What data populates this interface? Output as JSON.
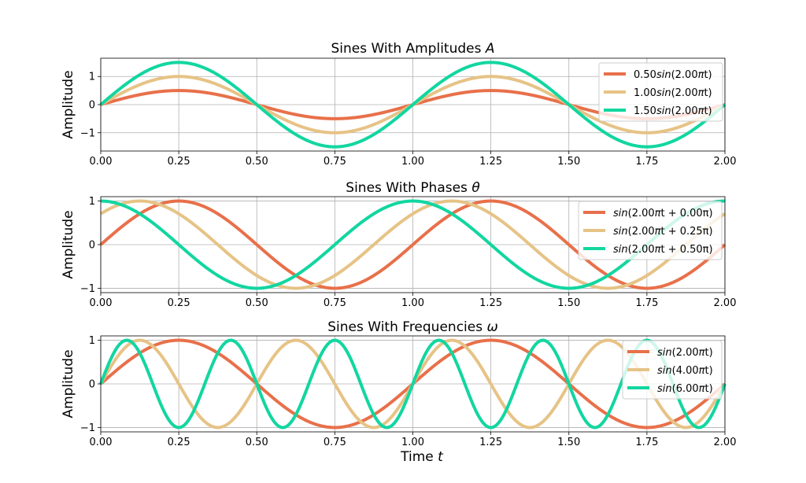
{
  "figure": {
    "xlabel_main": "Time",
    "xlabel_var": "t"
  },
  "colors": {
    "series1": "#e8704a",
    "series2": "#e6c386",
    "series3": "#12d6a0"
  },
  "chart_data": [
    {
      "type": "line",
      "title": "Sines With Amplitudes",
      "title_var": "A",
      "ylabel": "Amplitude",
      "xlim": [
        0,
        2
      ],
      "ylim": [
        -1.65,
        1.65
      ],
      "xticks": [
        "0.00",
        "0.25",
        "0.50",
        "0.75",
        "1.00",
        "1.25",
        "1.50",
        "1.75",
        "2.00"
      ],
      "yticks": [
        {
          "value": 1,
          "label": "1"
        },
        {
          "value": 0,
          "label": "0"
        },
        {
          "value": -1,
          "label": "−1"
        }
      ],
      "legend_position": "top-right",
      "series": [
        {
          "name": "0.50sin(2.00πt)",
          "legend_prefix": "0.50",
          "legend_func": "sin",
          "legend_args": "(2.00",
          "legend_mid": "π",
          "legend_tail": "t)",
          "amplitude": 0.5,
          "frequency": 2.0,
          "phase": 0.0,
          "color": "#e8704a"
        },
        {
          "name": "1.00sin(2.00πt)",
          "legend_prefix": "1.00",
          "legend_func": "sin",
          "legend_args": "(2.00",
          "legend_mid": "π",
          "legend_tail": "t)",
          "amplitude": 1.0,
          "frequency": 2.0,
          "phase": 0.0,
          "color": "#e6c386"
        },
        {
          "name": "1.50sin(2.00πt)",
          "legend_prefix": "1.50",
          "legend_func": "sin",
          "legend_args": "(2.00",
          "legend_mid": "π",
          "legend_tail": "t)",
          "amplitude": 1.5,
          "frequency": 2.0,
          "phase": 0.0,
          "color": "#12d6a0"
        }
      ]
    },
    {
      "type": "line",
      "title": "Sines With Phases",
      "title_var": "θ",
      "ylabel": "Amplitude",
      "xlim": [
        0,
        2
      ],
      "ylim": [
        -1.1,
        1.1
      ],
      "xticks": [
        "0.00",
        "0.25",
        "0.50",
        "0.75",
        "1.00",
        "1.25",
        "1.50",
        "1.75",
        "2.00"
      ],
      "yticks": [
        {
          "value": 1,
          "label": "1"
        },
        {
          "value": 0,
          "label": "0"
        },
        {
          "value": -1,
          "label": "−1"
        }
      ],
      "legend_position": "right",
      "series": [
        {
          "name": "sin(2.00πt + 0.00π)",
          "legend_prefix": "",
          "legend_func": "sin",
          "legend_args": "(2.00",
          "legend_mid": "π",
          "legend_tail": "t + 0.00π)",
          "amplitude": 1.0,
          "frequency": 2.0,
          "phase": 0.0,
          "color": "#e8704a"
        },
        {
          "name": "sin(2.00πt + 0.25π)",
          "legend_prefix": "",
          "legend_func": "sin",
          "legend_args": "(2.00",
          "legend_mid": "π",
          "legend_tail": "t + 0.25π)",
          "amplitude": 1.0,
          "frequency": 2.0,
          "phase": 0.25,
          "color": "#e6c386"
        },
        {
          "name": "sin(2.00πt + 0.50π)",
          "legend_prefix": "",
          "legend_func": "sin",
          "legend_args": "(2.00",
          "legend_mid": "π",
          "legend_tail": "t + 0.50π)",
          "amplitude": 1.0,
          "frequency": 2.0,
          "phase": 0.5,
          "color": "#12d6a0"
        }
      ]
    },
    {
      "type": "line",
      "title": "Sines With Frequencies",
      "title_var": "ω",
      "ylabel": "Amplitude",
      "xlim": [
        0,
        2
      ],
      "ylim": [
        -1.1,
        1.1
      ],
      "xticks": [
        "0.00",
        "0.25",
        "0.50",
        "0.75",
        "1.00",
        "1.25",
        "1.50",
        "1.75",
        "2.00"
      ],
      "yticks": [
        {
          "value": 1,
          "label": "1"
        },
        {
          "value": 0,
          "label": "0"
        },
        {
          "value": -1,
          "label": "−1"
        }
      ],
      "legend_position": "top-right",
      "series": [
        {
          "name": "sin(2.00πt)",
          "legend_prefix": "",
          "legend_func": "sin",
          "legend_args": "(2.00",
          "legend_mid": "π",
          "legend_tail": "t)",
          "amplitude": 1.0,
          "frequency": 2.0,
          "phase": 0.0,
          "color": "#e8704a"
        },
        {
          "name": "sin(4.00πt)",
          "legend_prefix": "",
          "legend_func": "sin",
          "legend_args": "(4.00",
          "legend_mid": "π",
          "legend_tail": "t)",
          "amplitude": 1.0,
          "frequency": 4.0,
          "phase": 0.0,
          "color": "#e6c386"
        },
        {
          "name": "sin(6.00πt)",
          "legend_prefix": "",
          "legend_func": "sin",
          "legend_args": "(6.00",
          "legend_mid": "π",
          "legend_tail": "t)",
          "amplitude": 1.0,
          "frequency": 6.0,
          "phase": 0.0,
          "color": "#12d6a0"
        }
      ]
    }
  ]
}
